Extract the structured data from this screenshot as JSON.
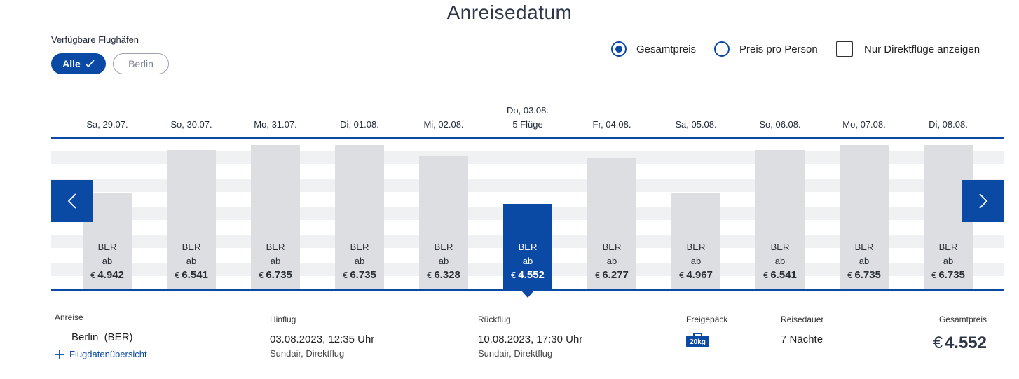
{
  "title": "Anreisedatum",
  "airports": {
    "label": "Verfügbare Flughäfen",
    "options": [
      {
        "label": "Alle"
      },
      {
        "label": "Berlin"
      }
    ]
  },
  "options": {
    "gesamtpreis": "Gesamtpreis",
    "preis_pro_person": "Preis pro Person",
    "nur_direkt": "Nur Direktflüge anzeigen",
    "selected": "Gesamtpreis",
    "direct_checked": false
  },
  "dates": [
    {
      "label": "Sa, 29.07.",
      "sub": "",
      "airport": "BER",
      "ab": "ab",
      "currency": "€",
      "price": "4.942",
      "value": 4942,
      "selected": false
    },
    {
      "label": "So, 30.07.",
      "sub": "",
      "airport": "BER",
      "ab": "ab",
      "currency": "€",
      "price": "6.541",
      "value": 6541,
      "selected": false
    },
    {
      "label": "Mo, 31.07.",
      "sub": "",
      "airport": "BER",
      "ab": "ab",
      "currency": "€",
      "price": "6.735",
      "value": 6735,
      "selected": false
    },
    {
      "label": "Di, 01.08.",
      "sub": "",
      "airport": "BER",
      "ab": "ab",
      "currency": "€",
      "price": "6.735",
      "value": 6735,
      "selected": false
    },
    {
      "label": "Mi, 02.08.",
      "sub": "",
      "airport": "BER",
      "ab": "ab",
      "currency": "€",
      "price": "6.328",
      "value": 6328,
      "selected": false
    },
    {
      "label": "Do, 03.08.",
      "sub": "5 Flüge",
      "airport": "BER",
      "ab": "ab",
      "currency": "€",
      "price": "4.552",
      "value": 4552,
      "selected": true
    },
    {
      "label": "Fr, 04.08.",
      "sub": "",
      "airport": "BER",
      "ab": "ab",
      "currency": "€",
      "price": "6.277",
      "value": 6277,
      "selected": false
    },
    {
      "label": "Sa, 05.08.",
      "sub": "",
      "airport": "BER",
      "ab": "ab",
      "currency": "€",
      "price": "4.967",
      "value": 4967,
      "selected": false
    },
    {
      "label": "So, 06.08.",
      "sub": "",
      "airport": "BER",
      "ab": "ab",
      "currency": "€",
      "price": "6.541",
      "value": 6541,
      "selected": false
    },
    {
      "label": "Mo, 07.08.",
      "sub": "",
      "airport": "BER",
      "ab": "ab",
      "currency": "€",
      "price": "6.735",
      "value": 6735,
      "selected": false
    },
    {
      "label": "Di, 08.08.",
      "sub": "",
      "airport": "BER",
      "ab": "ab",
      "currency": "€",
      "price": "6.735",
      "value": 6735,
      "selected": false
    }
  ],
  "details": {
    "anreise_label": "Anreise",
    "anreise_value": "Berlin  (BER)",
    "link": "Flugdatenübersicht",
    "hinflug_label": "Hinflug",
    "hinflug_value": "03.08.2023, 12:35 Uhr",
    "hinflug_sub": "Sundair, Direktflug",
    "rueckflug_label": "Rückflug",
    "rueckflug_value": "10.08.2023, 17:30 Uhr",
    "rueckflug_sub": "Sundair, Direktflug",
    "gepaeck_label": "Freigepäck",
    "gepaeck_badge": "20kg",
    "dauer_label": "Reisedauer",
    "dauer_value": "7 Nächte",
    "gesamt_label": "Gesamtpreis",
    "gesamt_currency": "€",
    "gesamt_value": "4.552"
  },
  "colors": {
    "accent": "#0a4aa5",
    "bar": "#dcdee2",
    "stripe": "#f0f1f3"
  },
  "icons": {
    "check": "check-icon",
    "prev": "chevron-left-icon",
    "next": "chevron-right-icon",
    "plus": "plus-icon",
    "luggage": "luggage-icon"
  }
}
